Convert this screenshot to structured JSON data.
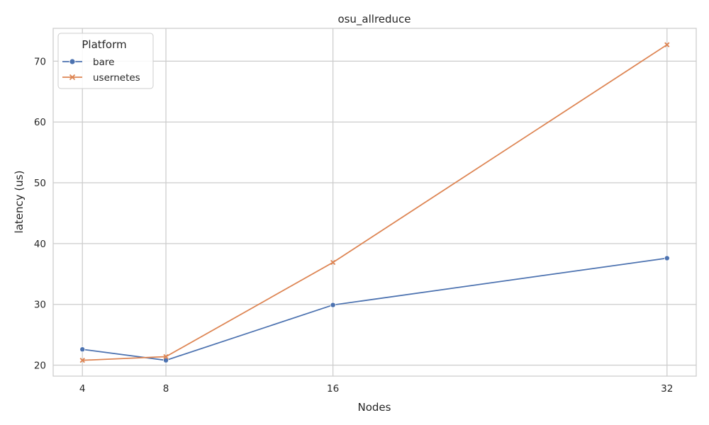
{
  "chart_data": {
    "type": "line",
    "title": "osu_allreduce",
    "xlabel": "Nodes",
    "ylabel": "latency (us)",
    "x": [
      4,
      8,
      16,
      32
    ],
    "x_tick_labels": [
      "4",
      "8",
      "16",
      "32"
    ],
    "xlim": [
      2.6,
      33.4
    ],
    "y_ticks": [
      20,
      30,
      40,
      50,
      60,
      70
    ],
    "y_tick_labels": [
      "20",
      "30",
      "40",
      "50",
      "60",
      "70"
    ],
    "ylim": [
      18.2,
      75.4
    ],
    "grid": true,
    "legend": {
      "title": "Platform",
      "position": "top-left"
    },
    "series": [
      {
        "name": "bare",
        "marker": "circle",
        "color": "#4c72b0",
        "values": [
          22.6,
          20.8,
          29.9,
          37.6
        ]
      },
      {
        "name": "usernetes",
        "marker": "x",
        "color": "#dd8452",
        "values": [
          20.8,
          21.4,
          36.9,
          72.7
        ]
      }
    ]
  }
}
